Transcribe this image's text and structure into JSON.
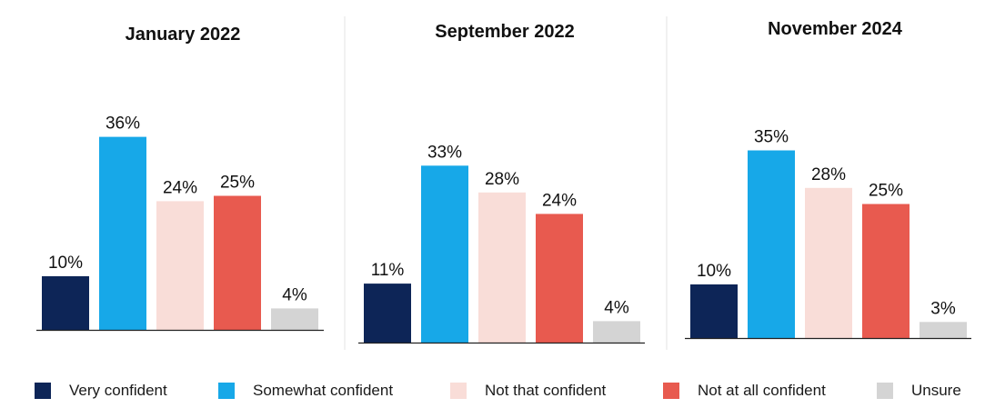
{
  "chart_data": [
    {
      "type": "bar",
      "title": "January 2022",
      "categories": [
        "Very confident",
        "Somewhat confident",
        "Not that confident",
        "Not at all confident",
        "Unsure"
      ],
      "values": [
        10,
        36,
        24,
        25,
        4
      ],
      "value_labels": [
        "10%",
        "36%",
        "24%",
        "25%",
        "4%"
      ],
      "ylim": [
        0,
        40
      ]
    },
    {
      "type": "bar",
      "title": "September 2022",
      "categories": [
        "Very confident",
        "Somewhat confident",
        "Not that confident",
        "Not at all confident",
        "Unsure"
      ],
      "values": [
        11,
        33,
        28,
        24,
        4
      ],
      "value_labels": [
        "11%",
        "33%",
        "28%",
        "24%",
        "4%"
      ],
      "ylim": [
        0,
        40
      ]
    },
    {
      "type": "bar",
      "title": "November 2024",
      "categories": [
        "Very confident",
        "Somewhat confident",
        "Not that confident",
        "Not at all confident",
        "Unsure"
      ],
      "values": [
        10,
        35,
        28,
        25,
        3
      ],
      "value_labels": [
        "10%",
        "35%",
        "28%",
        "25%",
        "3%"
      ],
      "ylim": [
        0,
        40
      ]
    }
  ],
  "legend": [
    {
      "label": "Very confident",
      "color": "#0d2557"
    },
    {
      "label": "Somewhat confident",
      "color": "#17a8e8"
    },
    {
      "label": "Not that confident",
      "color": "#f9ddd8"
    },
    {
      "label": "Not at all confident",
      "color": "#e85a4f"
    },
    {
      "label": "Unsure",
      "color": "#d4d4d4"
    }
  ]
}
